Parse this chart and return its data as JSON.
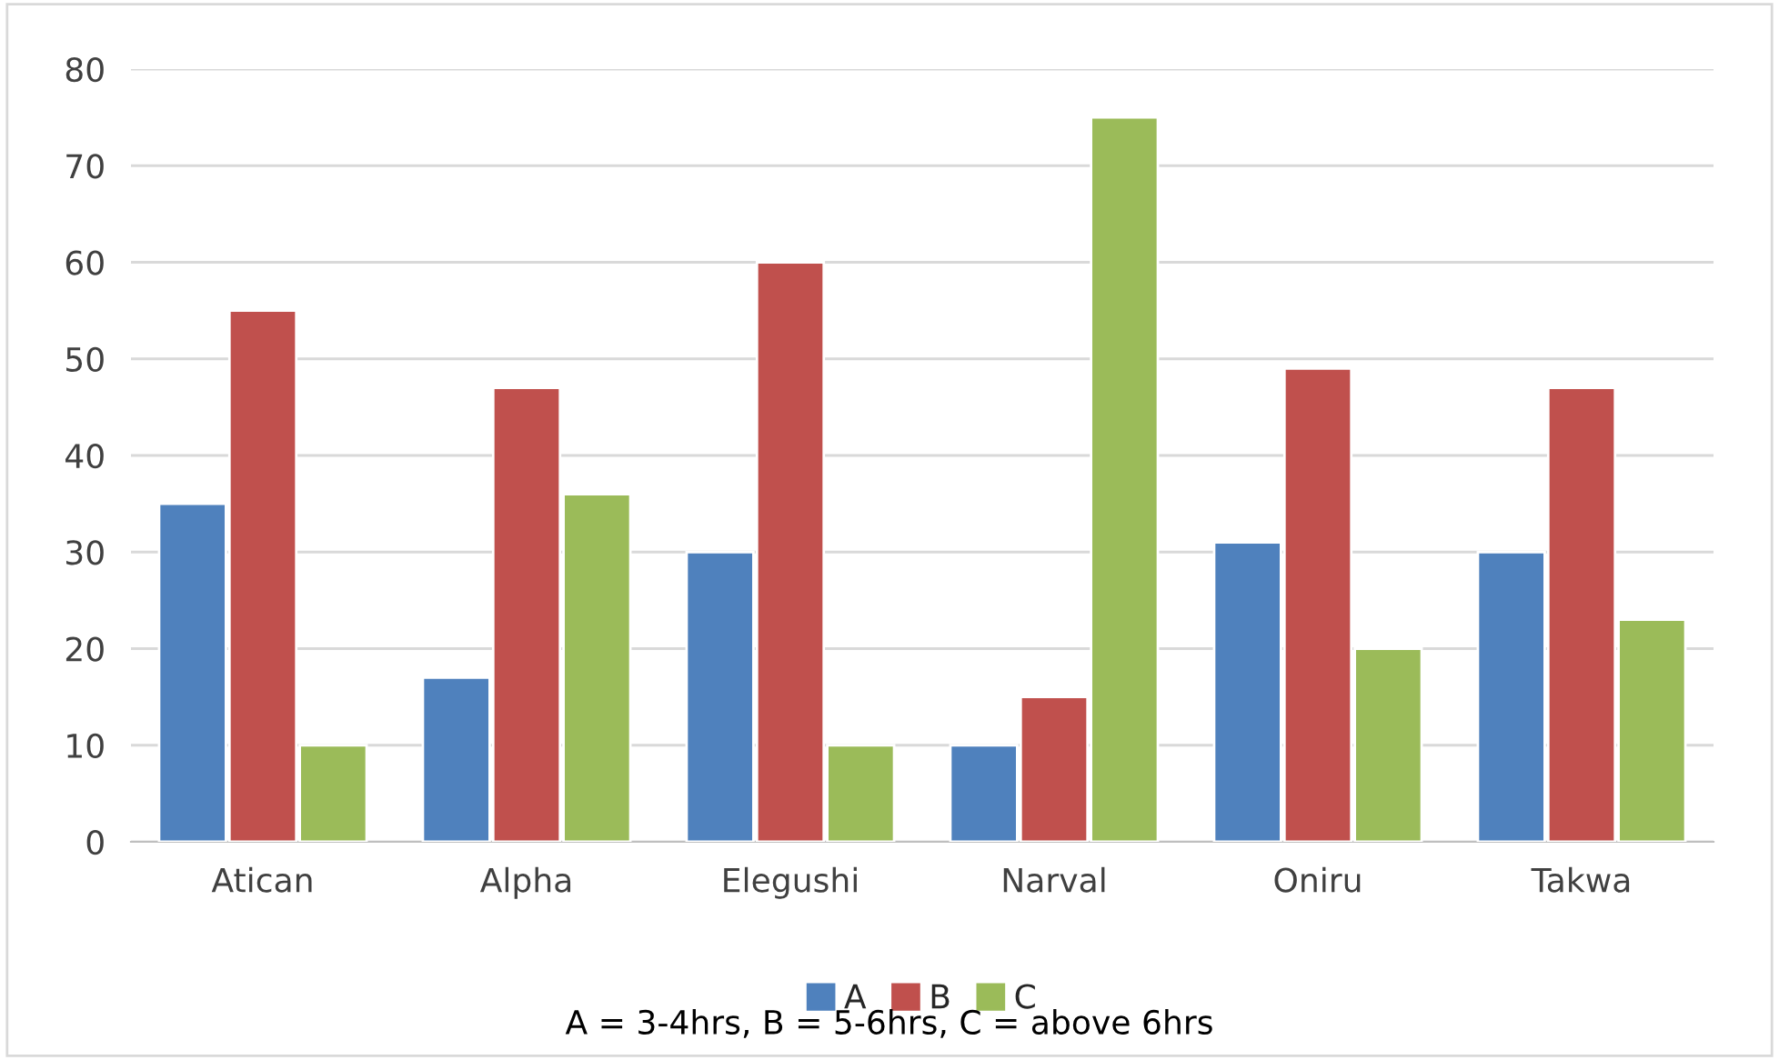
{
  "chart_data": {
    "type": "bar",
    "categories": [
      "Atican",
      "Alpha",
      "Elegushi",
      "Narval",
      "Oniru",
      "Takwa"
    ],
    "series": [
      {
        "name": "A",
        "color": "#4f81bd",
        "values": [
          35,
          17,
          30,
          10,
          31,
          30
        ]
      },
      {
        "name": "B",
        "color": "#c0504d",
        "values": [
          55,
          47,
          60,
          15,
          49,
          47
        ]
      },
      {
        "name": "C",
        "color": "#9bbb59",
        "values": [
          10,
          36,
          10,
          75,
          20,
          23
        ]
      }
    ],
    "ylim": [
      0,
      80
    ],
    "yticks": [
      0,
      10,
      20,
      30,
      40,
      50,
      60,
      70,
      80
    ],
    "grid": "y",
    "legend": "bottom",
    "annotations": [
      "A = 3-4hrs, B = 5-6hrs, C = above 6hrs"
    ]
  }
}
